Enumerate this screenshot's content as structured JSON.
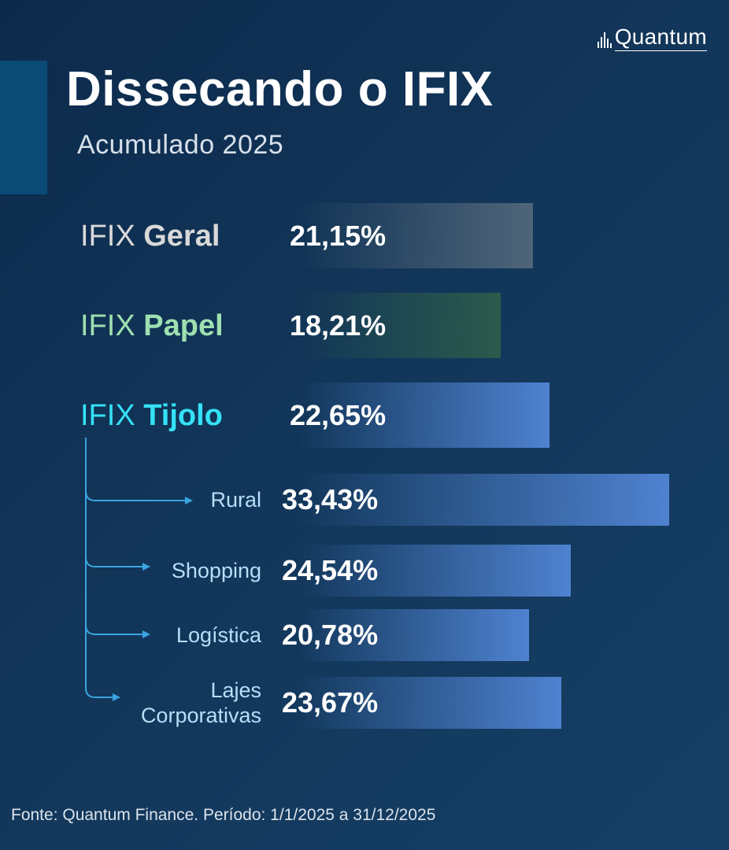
{
  "brand": {
    "logo_text": "Quantum",
    "logo_icon": "chart-bars-icon"
  },
  "header": {
    "title": "Dissecando o IFIX",
    "subtitle": "Acumulado 2025"
  },
  "footer": {
    "source": "Fonte: Quantum Finance. Período: 1/1/2025 a 31/12/2025"
  },
  "colors": {
    "geral": "#d9d9d9",
    "papel": "#9ee0b0",
    "tijolo": "#35e1f7",
    "sub_label": "#b8def8",
    "bar_geral_end": "#4f6579",
    "bar_papel_end": "#2c5a4b",
    "bar_blue_end": "#4f82d0"
  },
  "chart_data": {
    "type": "bar",
    "orientation": "horizontal",
    "title": "Dissecando o IFIX",
    "subtitle": "Acumulado 2025",
    "unit": "%",
    "items": [
      {
        "prefix": "IFIX",
        "name": "Geral",
        "value": 21.15,
        "label": "21,15%",
        "level": "main",
        "color_key": "geral"
      },
      {
        "prefix": "IFIX",
        "name": "Papel",
        "value": 18.21,
        "label": "18,21%",
        "level": "main",
        "color_key": "papel"
      },
      {
        "prefix": "IFIX",
        "name": "Tijolo",
        "value": 22.65,
        "label": "22,65%",
        "level": "main",
        "color_key": "tijolo"
      },
      {
        "name": "Rural",
        "value": 33.43,
        "label": "33,43%",
        "level": "sub",
        "parent": "Tijolo"
      },
      {
        "name": "Shopping",
        "value": 24.54,
        "label": "24,54%",
        "level": "sub",
        "parent": "Tijolo"
      },
      {
        "name": "Logística",
        "value": 20.78,
        "label": "20,78%",
        "level": "sub",
        "parent": "Tijolo"
      },
      {
        "name": "Lajes Corporativas",
        "lines": [
          "Lajes",
          "Corporativas"
        ],
        "value": 23.67,
        "label": "23,67%",
        "level": "sub",
        "parent": "Tijolo"
      }
    ]
  }
}
